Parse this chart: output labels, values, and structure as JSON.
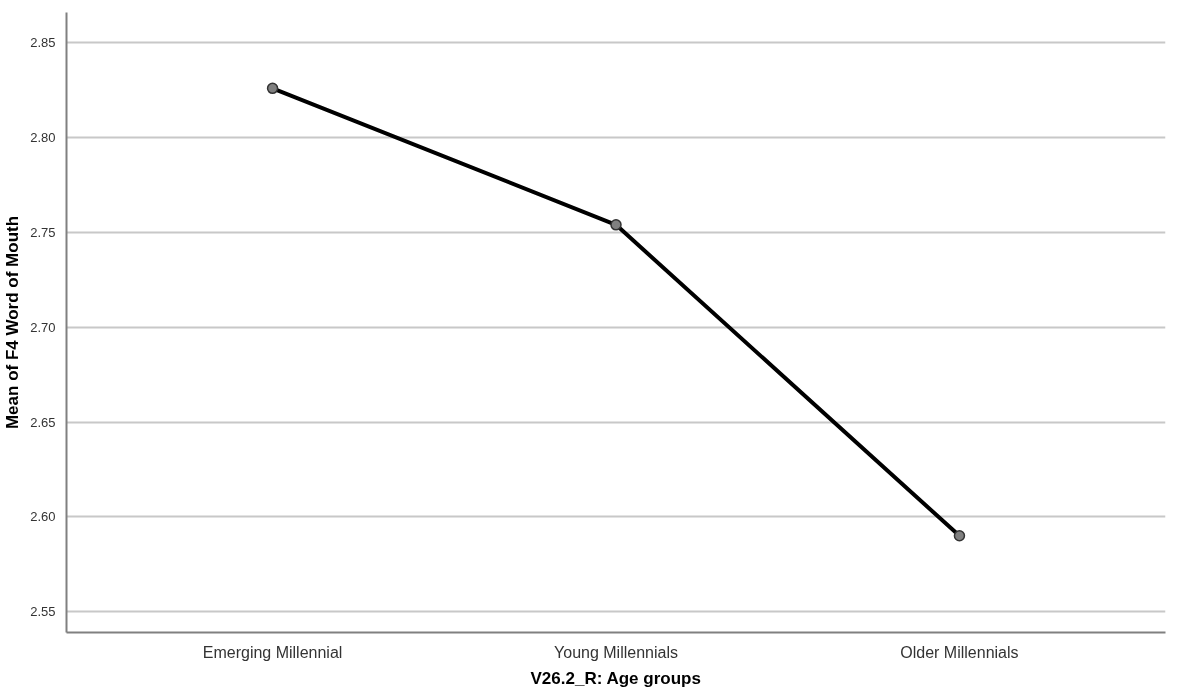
{
  "chart_data": {
    "type": "line",
    "xlabel": "V26.2_R: Age groups",
    "ylabel": "Mean of F4 Word of Mouth",
    "categories": [
      "Emerging Millennial",
      "Young Millennials",
      "Older Millennials"
    ],
    "series": [
      {
        "color": "#000000",
        "values": [
          2.826,
          2.754,
          2.59
        ]
      }
    ],
    "ylim": [
      2.539,
      2.866
    ],
    "yticks": [
      {
        "value": 2.55,
        "label": "2.55"
      },
      {
        "value": 2.6,
        "label": "2.60"
      },
      {
        "value": 2.65,
        "label": "2.65"
      },
      {
        "value": 2.7,
        "label": "2.70"
      },
      {
        "value": 2.75,
        "label": "2.75"
      },
      {
        "value": 2.8,
        "label": "2.80"
      },
      {
        "value": 2.85,
        "label": "2.85"
      }
    ],
    "grid": "y",
    "marker": "circle",
    "line_style": "solid"
  }
}
